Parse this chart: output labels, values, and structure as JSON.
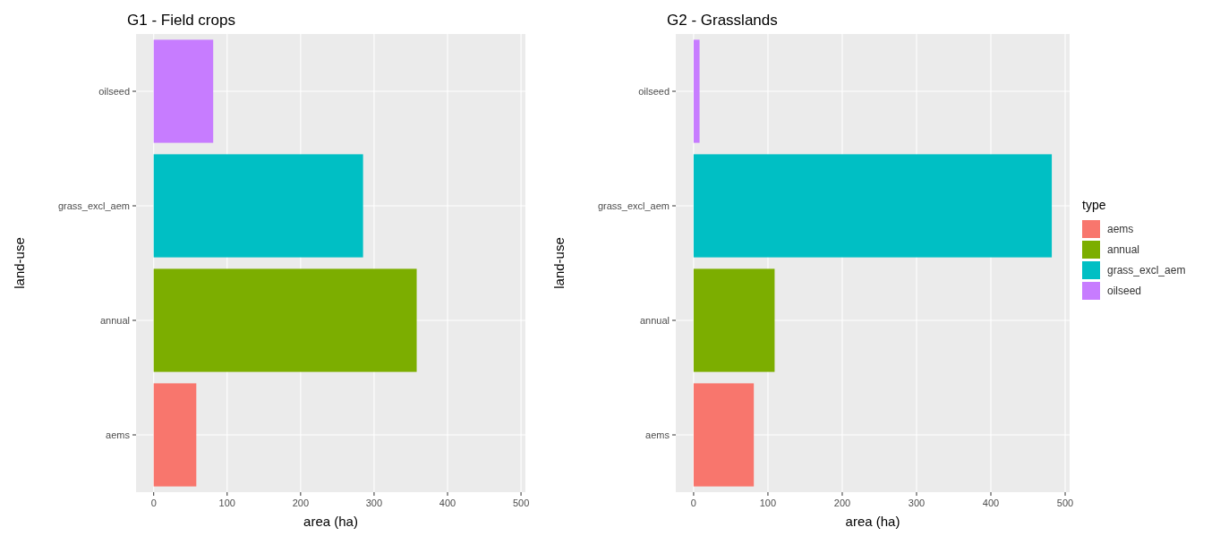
{
  "chart_data": [
    {
      "type": "bar",
      "orientation": "horizontal",
      "title": "G1 - Field crops",
      "xlabel": "area (ha)",
      "ylabel": "land-use",
      "categories": [
        "oilseed",
        "grass_excl_aem",
        "annual",
        "aems"
      ],
      "values": [
        81,
        285,
        358,
        58
      ],
      "colors": [
        "#c77cff",
        "#00bfc4",
        "#7cae00",
        "#f8766d"
      ],
      "xlim": [
        -24,
        506
      ],
      "xticks": [
        0,
        100,
        200,
        300,
        400,
        500
      ],
      "grid": true
    },
    {
      "type": "bar",
      "orientation": "horizontal",
      "stacked": true,
      "title": "G2 - Grasslands",
      "xlabel": "area (ha)",
      "ylabel": "land-use",
      "categories": [
        "oilseed",
        "grass_excl_aem",
        "annual",
        "aems"
      ],
      "series": [
        {
          "name": "aems",
          "color": "#f8766d",
          "values": [
            null,
            null,
            null,
            81
          ]
        },
        {
          "name": "annual",
          "color": "#7cae00",
          "values": [
            null,
            null,
            109,
            null
          ]
        },
        {
          "name": "grass_excl_aem",
          "color": "#00bfc4",
          "values": [
            null,
            482,
            null,
            null
          ]
        },
        {
          "name": "oilseed",
          "color": "#c77cff",
          "values": [
            8,
            null,
            null,
            null
          ]
        }
      ],
      "xlim": [
        -24,
        506
      ],
      "xticks": [
        0,
        100,
        200,
        300,
        400,
        500
      ],
      "grid": true,
      "legend": "right",
      "legend_title": "type"
    }
  ]
}
